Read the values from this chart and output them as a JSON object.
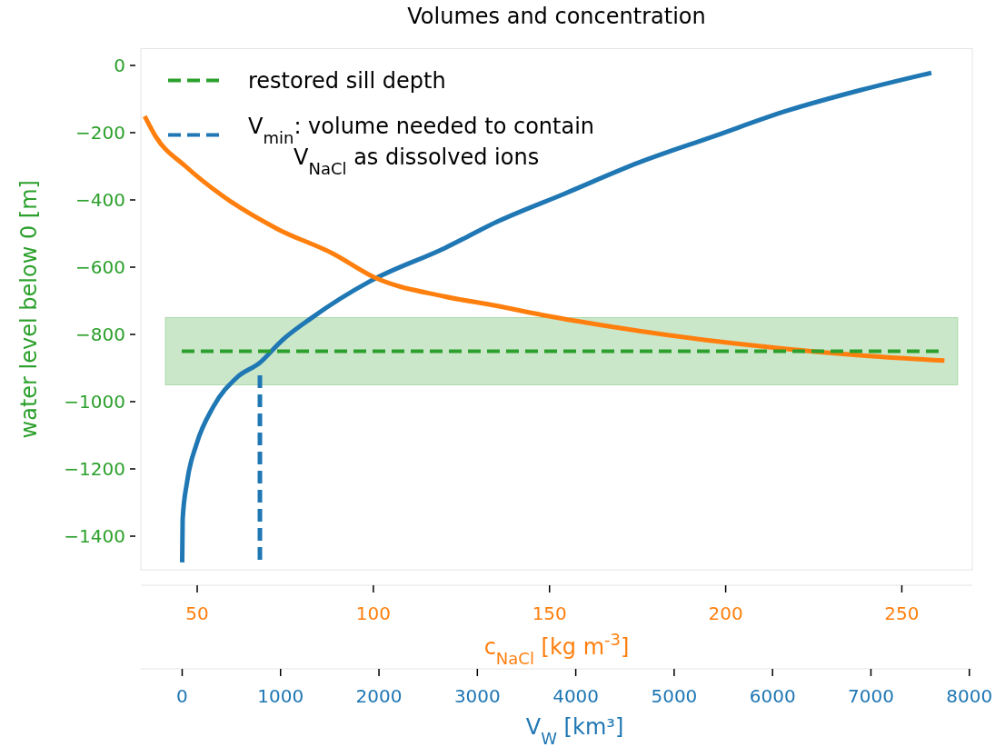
{
  "chart_data": {
    "type": "line",
    "title": "Volumes and concentration",
    "xlabel": "V$_{W}$ [km³]",
    "x2label": "c$_{NaCl}$ [kg m$^{-3}$]",
    "ylabel": "water level below 0 [m]",
    "xlim": [
      -420,
      8030
    ],
    "xticks": [
      0,
      1000,
      2000,
      3000,
      4000,
      5000,
      6000,
      7000,
      8000
    ],
    "x2lim": [
      34,
      270
    ],
    "x2ticks": [
      50,
      100,
      150,
      200,
      250
    ],
    "ylim": [
      -1500,
      50
    ],
    "yticks": [
      0,
      {
        "value": -200,
        "label": "−200"
      },
      {
        "value": -400,
        "label": "−400"
      },
      {
        "value": -600,
        "label": "−600"
      },
      {
        "value": -800,
        "label": "−800"
      },
      {
        "value": -1000,
        "label": "−1000"
      },
      {
        "value": -1200,
        "label": "−1200"
      },
      {
        "value": -1400,
        "label": "−1400"
      }
    ],
    "grid": false,
    "legend": "top left",
    "ref_lines": [
      {
        "axis": "y",
        "value": -850,
        "label": "restored sill depth",
        "color": "#2ca02c",
        "line_style": "dashed"
      }
    ],
    "bands": [
      {
        "axis": "y",
        "from": -950,
        "to": -750,
        "color": "#2ca02c"
      }
    ],
    "series": [
      {
        "color": "#1f77b4",
        "x": [
          0,
          5,
          50,
          145,
          315,
          560,
          790,
          1010,
          1315,
          1915,
          2670,
          3200,
          3890,
          4640,
          5400,
          6145,
          6900,
          7614
        ],
        "values": [
          -1478,
          -1349,
          -1238,
          -1127,
          -1016,
          -927,
          -884,
          -819,
          -751,
          -641,
          -543,
          -465,
          -381,
          -289,
          -211,
          -135,
          -73,
          -22
        ]
      },
      {
        "color": "#ff7f0e",
        "axis": "x2",
        "x": [
          35.1,
          38.2,
          46.7,
          57.2,
          72.9,
          88.6,
          100.2,
          120.2,
          135,
          149.9,
          175.1,
          196.2,
          217.3,
          238.1,
          262.1
        ],
        "values": [
          -151,
          -211,
          -300,
          -388,
          -487,
          -560,
          -630,
          -687,
          -715,
          -746,
          -789,
          -819,
          -843,
          -862,
          -878
        ]
      },
      {
        "name": "V$_{min}$: volume needed to contain\nV$_{NaCl}$ as dissolved ions",
        "color": "#1f77b4",
        "line_style": "dashed",
        "x": [
          790,
          790
        ],
        "values": [
          -1470,
          -910
        ]
      }
    ]
  }
}
